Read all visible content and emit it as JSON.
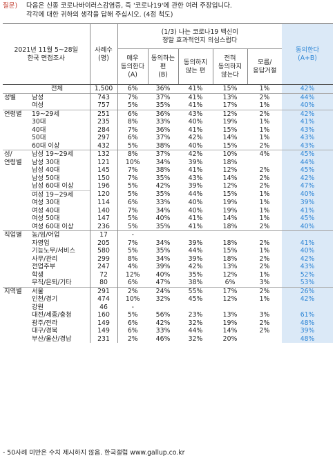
{
  "question": {
    "label": "질문)",
    "line1": "다음은 신종 코로나바이러스감염증, 즉 '코로나19'에 관한 여러 주장입니다.",
    "line2": "각각에 대한 귀하의 생각을 답해 주십시오. (4점 척도)"
  },
  "header": {
    "survey_line1": "2021년 11월 5~28일",
    "survey_line2": "한국 면접조사",
    "cases_line1": "사례수",
    "cases_line2": "(명)",
    "statement_line1": "(1/3) 나는 코로나19 백신이",
    "statement_line2": "정말 효과적인지 의심스럽다",
    "agree_col_line1": "동의한다",
    "agree_col_line2": "(A+B)",
    "cols": [
      {
        "l1": "매우",
        "l2": "동의한다",
        "l3": "(A)"
      },
      {
        "l1": "동의하는",
        "l2": "편",
        "l3": "(B)"
      },
      {
        "l1": "동의하지",
        "l2": "않는 편",
        "l3": ""
      },
      {
        "l1": "전혀",
        "l2": "동의하지",
        "l3": "않는다"
      },
      {
        "l1": "모름/",
        "l2": "응답거절",
        "l3": ""
      }
    ]
  },
  "rows": [
    {
      "cat": "",
      "sub": "전체",
      "n": "1,500",
      "v": [
        "6%",
        "36%",
        "41%",
        "15%",
        "1%"
      ],
      "ab": "42%",
      "line": "top"
    },
    {
      "cat": "성별",
      "sub": "남성",
      "n": "743",
      "v": [
        "7%",
        "37%",
        "41%",
        "13%",
        "2%"
      ],
      "ab": "44%",
      "line": "group"
    },
    {
      "cat": "",
      "sub": "여성",
      "n": "757",
      "v": [
        "5%",
        "35%",
        "41%",
        "17%",
        "1%"
      ],
      "ab": "40%",
      "line": ""
    },
    {
      "cat": "연령별",
      "sub": "19~29세",
      "n": "251",
      "v": [
        "6%",
        "36%",
        "43%",
        "12%",
        "2%"
      ],
      "ab": "42%",
      "line": "group"
    },
    {
      "cat": "",
      "sub": "30대",
      "n": "235",
      "v": [
        "8%",
        "33%",
        "40%",
        "19%",
        "1%"
      ],
      "ab": "41%",
      "line": ""
    },
    {
      "cat": "",
      "sub": "40대",
      "n": "284",
      "v": [
        "7%",
        "36%",
        "41%",
        "15%",
        "1%"
      ],
      "ab": "43%",
      "line": ""
    },
    {
      "cat": "",
      "sub": "50대",
      "n": "297",
      "v": [
        "6%",
        "37%",
        "42%",
        "14%",
        "1%"
      ],
      "ab": "43%",
      "line": ""
    },
    {
      "cat": "",
      "sub": "60대 이상",
      "n": "432",
      "v": [
        "5%",
        "38%",
        "40%",
        "15%",
        "2%"
      ],
      "ab": "43%",
      "line": ""
    },
    {
      "cat": "성/",
      "sub": "남성 19~29세",
      "n": "132",
      "v": [
        "8%",
        "37%",
        "42%",
        "10%",
        "4%"
      ],
      "ab": "45%",
      "line": "group"
    },
    {
      "cat": "연령별",
      "sub": "남성 30대",
      "n": "121",
      "v": [
        "10%",
        "34%",
        "39%",
        "18%",
        ""
      ],
      "ab": "44%",
      "line": ""
    },
    {
      "cat": "",
      "sub": "남성 40대",
      "n": "145",
      "v": [
        "7%",
        "38%",
        "41%",
        "12%",
        "2%"
      ],
      "ab": "45%",
      "line": ""
    },
    {
      "cat": "",
      "sub": "남성 50대",
      "n": "150",
      "v": [
        "7%",
        "35%",
        "43%",
        "14%",
        "2%"
      ],
      "ab": "42%",
      "line": ""
    },
    {
      "cat": "",
      "sub": "남성 60대 이상",
      "n": "196",
      "v": [
        "5%",
        "42%",
        "39%",
        "12%",
        "2%"
      ],
      "ab": "47%",
      "line": ""
    },
    {
      "cat": "",
      "sub": "여성 19~29세",
      "n": "120",
      "v": [
        "5%",
        "35%",
        "44%",
        "15%",
        "1%"
      ],
      "ab": "40%",
      "line": "sub"
    },
    {
      "cat": "",
      "sub": "여성 30대",
      "n": "114",
      "v": [
        "6%",
        "33%",
        "40%",
        "19%",
        "1%"
      ],
      "ab": "39%",
      "line": ""
    },
    {
      "cat": "",
      "sub": "여성 40대",
      "n": "140",
      "v": [
        "7%",
        "34%",
        "40%",
        "19%",
        "1%"
      ],
      "ab": "41%",
      "line": ""
    },
    {
      "cat": "",
      "sub": "여성 50대",
      "n": "147",
      "v": [
        "5%",
        "40%",
        "41%",
        "14%",
        "1%"
      ],
      "ab": "45%",
      "line": ""
    },
    {
      "cat": "",
      "sub": "여성 60대 이상",
      "n": "236",
      "v": [
        "5%",
        "35%",
        "41%",
        "18%",
        "2%"
      ],
      "ab": "40%",
      "line": ""
    },
    {
      "cat": "직업별",
      "sub": "농/임/어업",
      "n": "17",
      "v": [
        "-",
        "",
        "",
        "",
        ""
      ],
      "ab": "",
      "line": "group"
    },
    {
      "cat": "",
      "sub": "자영업",
      "n": "205",
      "v": [
        "7%",
        "34%",
        "39%",
        "18%",
        "2%"
      ],
      "ab": "41%",
      "line": ""
    },
    {
      "cat": "",
      "sub": "기능노무/서비스",
      "n": "580",
      "v": [
        "5%",
        "35%",
        "44%",
        "15%",
        "1%"
      ],
      "ab": "40%",
      "line": ""
    },
    {
      "cat": "",
      "sub": "사무/관리",
      "n": "299",
      "v": [
        "8%",
        "34%",
        "39%",
        "18%",
        "2%"
      ],
      "ab": "42%",
      "line": ""
    },
    {
      "cat": "",
      "sub": "전업주부",
      "n": "247",
      "v": [
        "4%",
        "39%",
        "42%",
        "13%",
        "2%"
      ],
      "ab": "43%",
      "line": ""
    },
    {
      "cat": "",
      "sub": "학생",
      "n": "72",
      "v": [
        "12%",
        "40%",
        "35%",
        "12%",
        "1%"
      ],
      "ab": "52%",
      "line": ""
    },
    {
      "cat": "",
      "sub": "무직/은퇴/기타",
      "n": "80",
      "v": [
        "6%",
        "47%",
        "38%",
        "6%",
        "3%"
      ],
      "ab": "53%",
      "line": ""
    },
    {
      "cat": "지역별",
      "sub": "서울",
      "n": "291",
      "v": [
        "2%",
        "24%",
        "55%",
        "17%",
        "2%"
      ],
      "ab": "26%",
      "line": "group"
    },
    {
      "cat": "",
      "sub": "인천/경기",
      "n": "474",
      "v": [
        "10%",
        "32%",
        "45%",
        "12%",
        "1%"
      ],
      "ab": "42%",
      "line": ""
    },
    {
      "cat": "",
      "sub": "강원",
      "n": "46",
      "v": [
        "-",
        "",
        "",
        "",
        ""
      ],
      "ab": "",
      "line": ""
    },
    {
      "cat": "",
      "sub": "대전/세종/충청",
      "n": "160",
      "v": [
        "5%",
        "56%",
        "23%",
        "13%",
        "3%"
      ],
      "ab": "61%",
      "line": ""
    },
    {
      "cat": "",
      "sub": "광주/전라",
      "n": "149",
      "v": [
        "6%",
        "42%",
        "32%",
        "19%",
        "2%"
      ],
      "ab": "48%",
      "line": ""
    },
    {
      "cat": "",
      "sub": "대구/경북",
      "n": "149",
      "v": [
        "6%",
        "33%",
        "44%",
        "14%",
        "2%"
      ],
      "ab": "39%",
      "line": ""
    },
    {
      "cat": "",
      "sub": "부산/울산/경남",
      "n": "231",
      "v": [
        "2%",
        "46%",
        "32%",
        "20%",
        ""
      ],
      "ab": "48%",
      "line": ""
    }
  ],
  "footnote": "- 50사례 미만은 수치 제시하지 않음. 한국갤럽 www.gallup.co.kr",
  "colors": {
    "accent_blue": "#2f86d6",
    "accent_bg": "#dbe9f7",
    "question_label": "#c0392b"
  }
}
